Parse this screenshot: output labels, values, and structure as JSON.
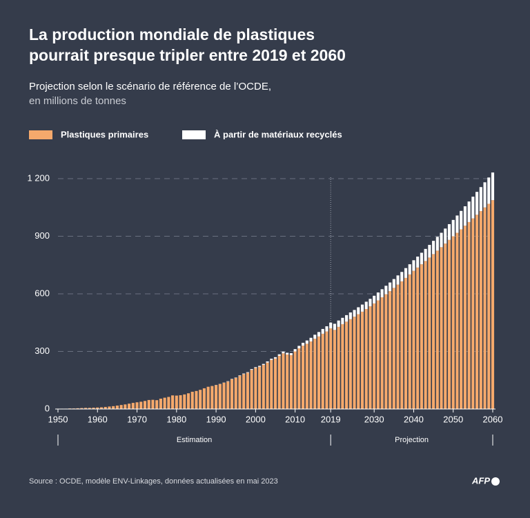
{
  "chart_data": {
    "type": "stacked-bar",
    "title": [
      "La production mondiale de plastiques",
      "pourrait presque tripler entre 2019 et 2060"
    ],
    "subtitle": [
      "Projection selon le scénario de référence de l’OCDE,",
      "en millions de tonnes"
    ],
    "x": [
      1950,
      1951,
      1952,
      1953,
      1954,
      1955,
      1956,
      1957,
      1958,
      1959,
      1960,
      1961,
      1962,
      1963,
      1964,
      1965,
      1966,
      1967,
      1968,
      1969,
      1970,
      1971,
      1972,
      1973,
      1974,
      1975,
      1976,
      1977,
      1978,
      1979,
      1980,
      1981,
      1982,
      1983,
      1984,
      1985,
      1986,
      1987,
      1988,
      1989,
      1990,
      1991,
      1992,
      1993,
      1994,
      1995,
      1996,
      1997,
      1998,
      1999,
      2000,
      2001,
      2002,
      2003,
      2004,
      2005,
      2006,
      2007,
      2008,
      2009,
      2010,
      2011,
      2012,
      2013,
      2014,
      2015,
      2016,
      2017,
      2018,
      2019,
      2020,
      2021,
      2022,
      2023,
      2024,
      2025,
      2026,
      2027,
      2028,
      2029,
      2030,
      2031,
      2032,
      2033,
      2034,
      2035,
      2036,
      2037,
      2038,
      2039,
      2040,
      2041,
      2042,
      2043,
      2044,
      2045,
      2046,
      2047,
      2048,
      2049,
      2050,
      2051,
      2052,
      2053,
      2054,
      2055,
      2056,
      2057,
      2058,
      2059,
      2060
    ],
    "series": [
      {
        "name": "Plastiques primaires",
        "color": "#f5a96c",
        "values": [
          2,
          2,
          2,
          3,
          3,
          4,
          5,
          6,
          6,
          7,
          8,
          9,
          11,
          13,
          15,
          18,
          21,
          24,
          28,
          32,
          35,
          38,
          42,
          47,
          48,
          46,
          54,
          59,
          63,
          71,
          70,
          72,
          76,
          82,
          90,
          94,
          100,
          108,
          116,
          120,
          124,
          130,
          137,
          143,
          155,
          162,
          172,
          182,
          189,
          204,
          214,
          220,
          230,
          242,
          256,
          263,
          277,
          290,
          284,
          281,
          300,
          316,
          330,
          340,
          352,
          366,
          378,
          392,
          404,
          420,
          412,
          428,
          442,
          455,
          468,
          481,
          494,
          507,
          521,
          535,
          550,
          566,
          582,
          598,
          614,
          631,
          648,
          665,
          683,
          701,
          720,
          737,
          754,
          771,
          789,
          807,
          825,
          843,
          862,
          881,
          900,
          918,
          936,
          955,
          974,
          993,
          1012,
          1031,
          1050,
          1069,
          1088
        ]
      },
      {
        "name": "À partir de matériaux recyclés",
        "color": "#ffffff",
        "values": [
          0,
          0,
          0,
          0,
          0,
          0,
          0,
          0,
          0,
          0,
          0,
          0,
          0,
          0,
          0,
          0,
          0,
          0,
          0,
          0,
          0,
          0,
          0,
          0,
          0,
          0,
          0,
          0,
          0,
          0,
          0,
          0,
          0,
          0,
          0,
          0,
          0,
          0,
          0,
          0,
          1,
          1,
          1,
          2,
          2,
          2,
          3,
          3,
          3,
          4,
          4,
          5,
          5,
          6,
          6,
          7,
          8,
          9,
          9,
          10,
          12,
          13,
          15,
          17,
          19,
          21,
          23,
          25,
          27,
          30,
          32,
          33,
          33,
          34,
          35,
          35,
          36,
          37,
          38,
          39,
          40,
          41,
          42,
          44,
          45,
          46,
          48,
          49,
          51,
          53,
          55,
          57,
          60,
          63,
          66,
          69,
          72,
          75,
          78,
          82,
          85,
          90,
          96,
          101,
          107,
          113,
          119,
          125,
          131,
          137,
          144
        ]
      }
    ],
    "xlim": [
      1950,
      2060
    ],
    "xticks": [
      1950,
      1960,
      1970,
      1980,
      1990,
      2000,
      2010,
      2019,
      2030,
      2040,
      2050,
      2060
    ],
    "ylim": [
      0,
      1200
    ],
    "yticks": [
      0,
      300,
      600,
      900,
      {
        "value": 1200,
        "label": "1 200"
      }
    ],
    "grid": true,
    "projection_start": 2019,
    "annotations": [
      "Estimation",
      "Projection"
    ],
    "source": "Source : OCDE, modèle ENV-Linkages, données actualisées en mai 2023",
    "logo": "AFP"
  }
}
